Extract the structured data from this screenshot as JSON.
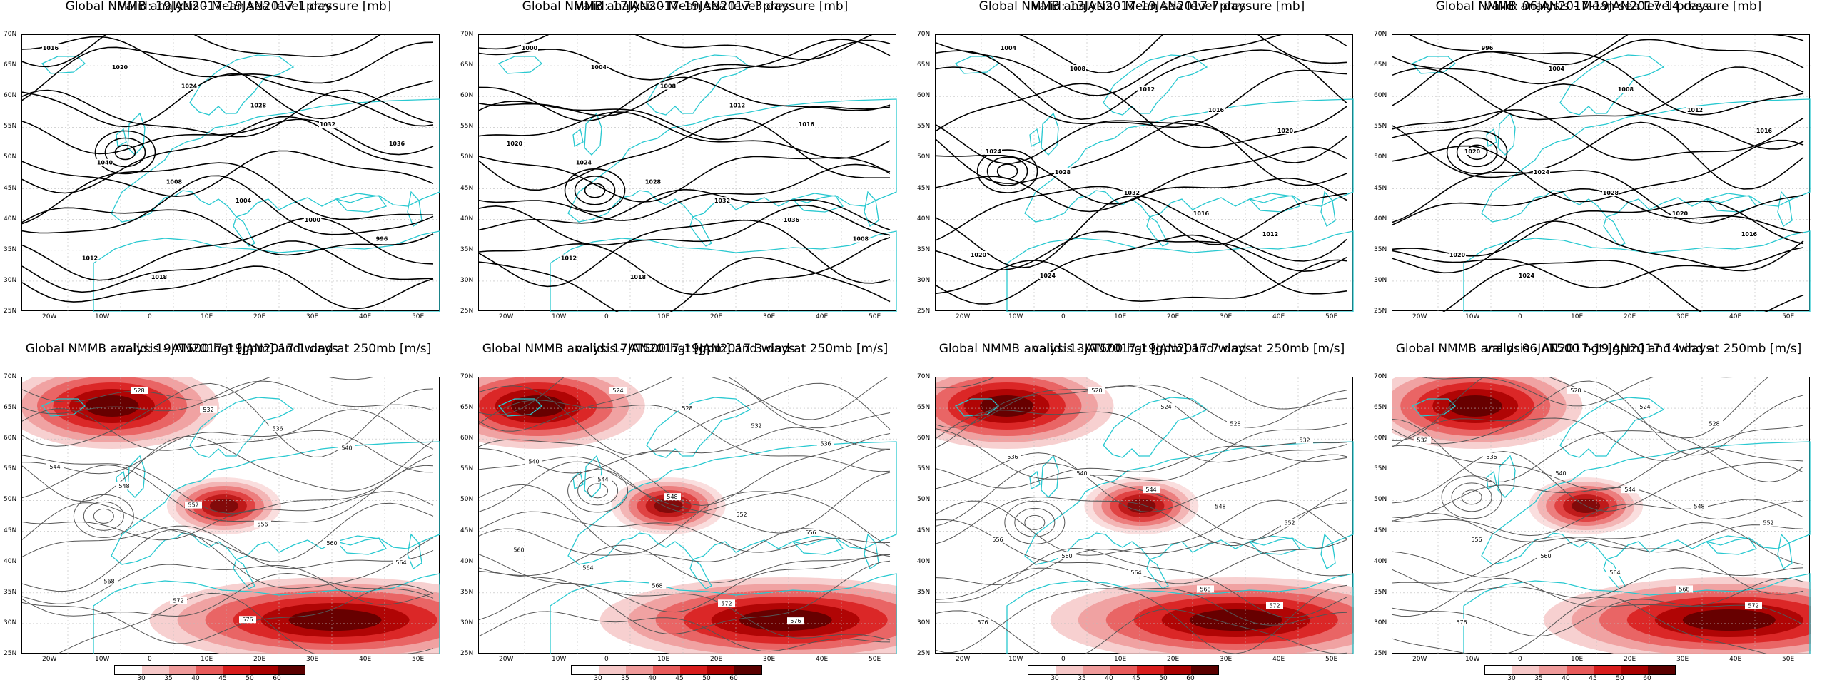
{
  "panels": [
    {
      "line1": "Global NMMB analysis - Mean sea level pressure [mb]",
      "line2": "valid: 19JAN2017-19JAN2017  1 days",
      "kind": "mslp"
    },
    {
      "line1": "Global NMMB analysis - Mean sea level pressure [mb]",
      "line2": "valid: 17JAN2017-19JAN2017  3 days",
      "kind": "mslp"
    },
    {
      "line1": "Global NMMB analysis - Mean sea level pressure [mb]",
      "line2": "valid: 13JAN2017-19JAN2017  7 days",
      "kind": "mslp"
    },
    {
      "line1": "Global NMMB analysis - Mean sea level pressure [mb]",
      "line2": "valid: 06JAN2017-19JAN2017  14 days",
      "kind": "mslp"
    },
    {
      "line1": "Global NMMB analysis - AT500 hgt [gpm] and wind at 250mb [m/s]",
      "line2": "valid: 19JAN2017-19JAN2017  1 days",
      "kind": "z500"
    },
    {
      "line1": "Global NMMB analysis - AT500 hgt [gpm] and wind at 250mb [m/s]",
      "line2": "valid: 17JAN2017-19JAN2017  3 days",
      "kind": "z500"
    },
    {
      "line1": "Global NMMB analysis - AT500 hgt [gpm] and wind at 250mb [m/s]",
      "line2": "valid: 13JAN2017-19JAN2017  7 days",
      "kind": "z500"
    },
    {
      "line1": "Global NMMB analysis - AT500 hgt [gpm] and wind at 250mb [m/s]",
      "line2": "valid: 06JAN2017-19JAN2017  14 days",
      "kind": "z500"
    }
  ],
  "lat_labels": [
    "70N",
    "65N",
    "60N",
    "55N",
    "50N",
    "45N",
    "40N",
    "35N",
    "30N",
    "25N"
  ],
  "lon_labels": [
    "20W",
    "10W",
    "0",
    "10E",
    "20E",
    "30E",
    "40E",
    "50E"
  ],
  "legend": {
    "ticks": [
      "30",
      "35",
      "40",
      "45",
      "50",
      "60"
    ],
    "colors": [
      "#ffffff",
      "#f6c8c8",
      "#ef9a9a",
      "#e85a5a",
      "#d81c1c",
      "#a80000",
      "#5a0000"
    ]
  },
  "colors": {
    "coast": "#28c8d0",
    "contour": "#000000",
    "z_contour": "#555555",
    "grid": "#bbbbbb"
  },
  "mslp_labels": {
    "p0": [
      "1016",
      "1020",
      "1024",
      "1028",
      "1032",
      "1036",
      "1040",
      "1008",
      "1004",
      "1000",
      "996",
      "1012",
      "1018"
    ],
    "p1": [
      "1000",
      "1004",
      "1008",
      "1012",
      "1016",
      "1020",
      "1024",
      "1028",
      "1032",
      "1036",
      "1008",
      "1012",
      "1018"
    ],
    "p2": [
      "1004",
      "1008",
      "1012",
      "1016",
      "1020",
      "1024",
      "1028",
      "1032",
      "1016",
      "1012",
      "1020",
      "1024"
    ],
    "p3": [
      "996",
      "1004",
      "1008",
      "1012",
      "1016",
      "1020",
      "1024",
      "1028",
      "1020",
      "1016",
      "1020",
      "1024"
    ]
  },
  "z_labels": {
    "p0": [
      "528",
      "532",
      "536",
      "540",
      "544",
      "548",
      "552",
      "556",
      "560",
      "564",
      "568",
      "572",
      "576"
    ],
    "p1": [
      "524",
      "528",
      "532",
      "536",
      "540",
      "544",
      "548",
      "552",
      "556",
      "560",
      "564",
      "568",
      "572",
      "576"
    ],
    "p2": [
      "520",
      "524",
      "528",
      "532",
      "536",
      "540",
      "544",
      "548",
      "552",
      "556",
      "560",
      "564",
      "568",
      "572",
      "576"
    ],
    "p3": [
      "520",
      "524",
      "528",
      "532",
      "536",
      "540",
      "544",
      "548",
      "552",
      "556",
      "560",
      "564",
      "568",
      "572",
      "576"
    ]
  }
}
